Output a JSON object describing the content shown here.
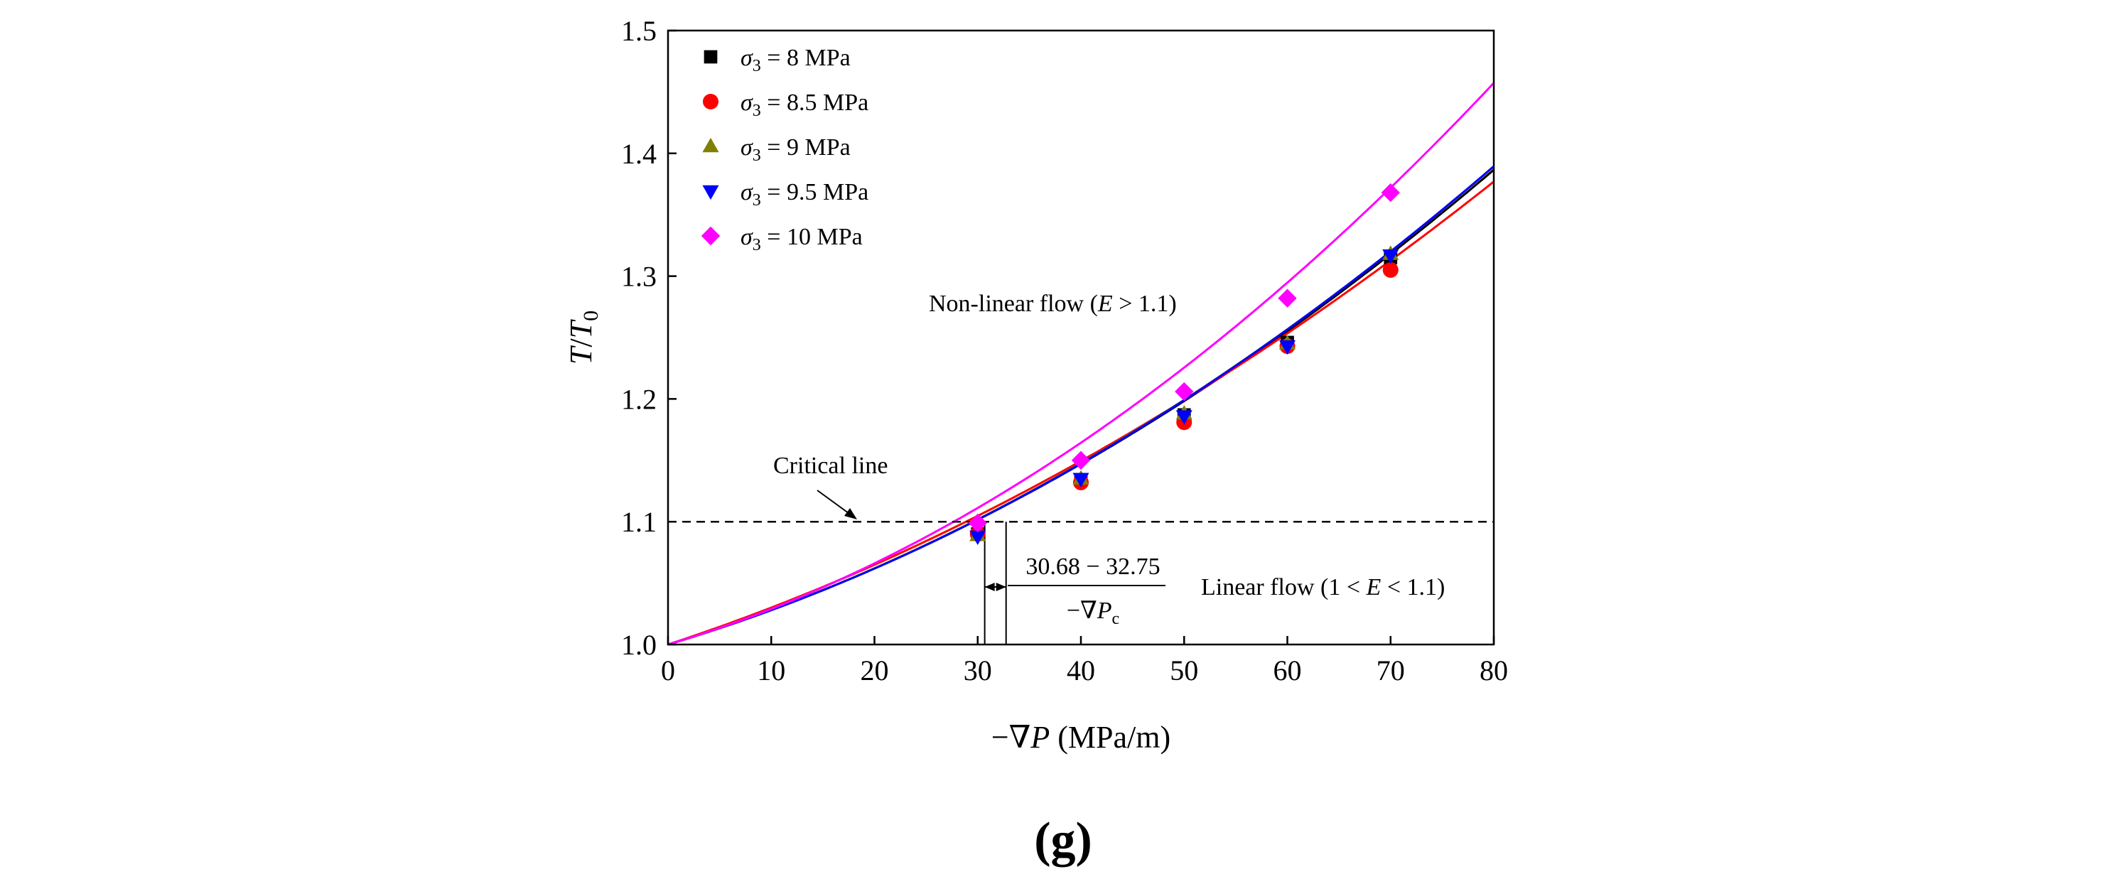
{
  "chart_data": {
    "type": "scatter",
    "title": "",
    "panel_label": "(g)",
    "xlabel": "−∇P (MPa/m)",
    "ylabel": "T/T0",
    "xlim": [
      0,
      80
    ],
    "ylim": [
      1.0,
      1.5
    ],
    "xticks": [
      0,
      10,
      20,
      30,
      40,
      50,
      60,
      70,
      80
    ],
    "yticks": [
      "1.0",
      "1.1",
      "1.2",
      "1.3",
      "1.4",
      "1.5"
    ],
    "grid": false,
    "legend_position": "top-left",
    "series": [
      {
        "name": "σ3 = 8 MPa",
        "symbol": "σ",
        "sub": "3",
        "suffix": " = 8 MPa",
        "marker": "square",
        "color": "#000000",
        "x": [
          30,
          40,
          50,
          60,
          70
        ],
        "y": [
          1.09,
          1.134,
          1.187,
          1.246,
          1.315
        ],
        "fit": [
          0.00252,
          2.89e-05
        ]
      },
      {
        "name": "σ3 = 8.5 MPa",
        "symbol": "σ",
        "sub": "3",
        "suffix": " = 8.5 MPa",
        "marker": "circle",
        "color": "#ff0000",
        "x": [
          30,
          40,
          50,
          60,
          70
        ],
        "y": [
          1.09,
          1.132,
          1.181,
          1.243,
          1.305
        ],
        "fit": [
          0.00276,
          2.44e-05
        ]
      },
      {
        "name": "σ3 = 9 MPa",
        "symbol": "σ",
        "sub": "3",
        "suffix": " = 9 MPa",
        "marker": "triangle-up",
        "color": "#808000",
        "x": [
          30,
          40,
          50,
          60,
          70
        ],
        "y": [
          1.089,
          1.135,
          1.188,
          1.245,
          1.318
        ],
        "fit": [
          0.00252,
          2.93e-05
        ]
      },
      {
        "name": "σ3 = 9.5 MPa",
        "symbol": "σ",
        "sub": "3",
        "suffix": " = 9.5 MPa",
        "marker": "triangle-down",
        "color": "#0000ff",
        "x": [
          30,
          40,
          50,
          60,
          70
        ],
        "y": [
          1.088,
          1.135,
          1.186,
          1.243,
          1.317
        ],
        "fit": [
          0.0025,
          2.96e-05
        ]
      },
      {
        "name": "σ3 = 10 MPa",
        "symbol": "σ",
        "sub": "3",
        "suffix": " = 10 MPa",
        "marker": "diamond",
        "color": "#ff00ff",
        "x": [
          30,
          40,
          50,
          60,
          70
        ],
        "y": [
          1.099,
          1.15,
          1.206,
          1.282,
          1.368
        ],
        "fit": [
          0.0025,
          4.02e-05
        ]
      }
    ],
    "critical_line": {
      "y": 1.1,
      "label": "Critical line",
      "style": "dashed"
    },
    "critical_range": {
      "x_low": 30.68,
      "x_high": 32.75,
      "label_top": "30.68 − 32.75",
      "label_bottom": "−∇P",
      "label_bottom_sub": "c"
    },
    "annotations": {
      "nonlinear": {
        "pre": "Non-linear flow (",
        "var": "E",
        "post": " > 1.1)"
      },
      "linear": {
        "pre": "Linear flow (1 < ",
        "var": "E",
        "post": " < 1.1)"
      }
    }
  }
}
